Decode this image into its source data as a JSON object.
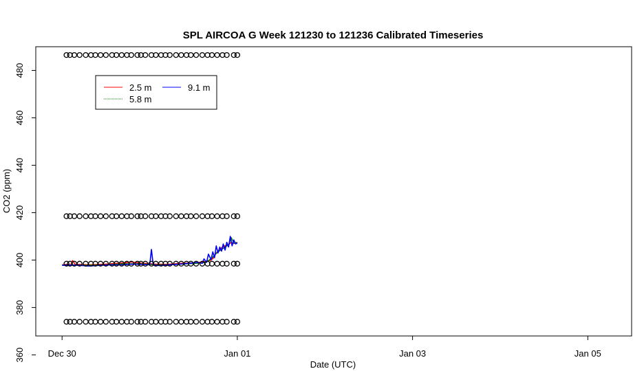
{
  "chart_data": {
    "type": "line",
    "title": "SPL AIRCOA G  Week 121230 to 121236  Calibrated Timeseries",
    "xlabel": "Date (UTC)",
    "ylabel": "CO2 (ppm)",
    "x_unit": "days since Dec 30",
    "xlim": [
      -0.3,
      6.5
    ],
    "ylim": [
      368,
      490
    ],
    "x_ticks": [
      {
        "value": 0,
        "label": "Dec 30"
      },
      {
        "value": 2,
        "label": "Jan 01"
      },
      {
        "value": 4,
        "label": "Jan 03"
      },
      {
        "value": 6,
        "label": "Jan 05"
      }
    ],
    "y_ticks": [
      360,
      380,
      400,
      420,
      440,
      460,
      480
    ],
    "grid": false,
    "legend": {
      "position": "top-left",
      "entries": [
        "2.5 m",
        "9.1 m",
        "5.8 m"
      ]
    },
    "series": [
      {
        "name": "2.5 m",
        "color": "#ff0000",
        "x": [
          0.0,
          0.05,
          0.1,
          0.12,
          0.15,
          0.3,
          0.5,
          0.7,
          0.8,
          0.9,
          1.0,
          1.05,
          1.2,
          1.35,
          1.5,
          1.6,
          1.65,
          1.7,
          1.73,
          1.76,
          1.8,
          1.83,
          1.86,
          1.9,
          1.93,
          1.96,
          2.0
        ],
        "y": [
          398.0,
          398.2,
          398.0,
          399.8,
          398.2,
          398.0,
          398.3,
          398.8,
          399.2,
          398.7,
          398.5,
          398.3,
          398.2,
          398.6,
          398.8,
          399.2,
          399.5,
          400.0,
          401.0,
          403.0,
          404.5,
          405.5,
          406.0,
          406.5,
          407.5,
          407.0,
          407.5
        ]
      },
      {
        "name": "5.8 m",
        "color": "#008000",
        "x": [
          0.0,
          0.1,
          0.3,
          0.5,
          0.7,
          0.9,
          1.0,
          1.05,
          1.2,
          1.4,
          1.6,
          1.65,
          1.7,
          1.75,
          1.8,
          1.85,
          1.9,
          1.93,
          1.96,
          2.0
        ],
        "y": [
          397.9,
          398.0,
          397.8,
          398.0,
          398.4,
          398.4,
          398.2,
          398.0,
          398.0,
          398.4,
          398.8,
          399.3,
          400.5,
          402.5,
          404.0,
          405.2,
          406.5,
          409.5,
          407.2,
          407.3
        ]
      },
      {
        "name": "9.1 m",
        "color": "#0000ff",
        "x": [
          0.0,
          0.1,
          0.2,
          0.3,
          0.4,
          0.5,
          0.6,
          0.7,
          0.8,
          0.9,
          1.0,
          1.02,
          1.04,
          1.1,
          1.2,
          1.3,
          1.4,
          1.5,
          1.55,
          1.6,
          1.62,
          1.65,
          1.67,
          1.7,
          1.72,
          1.74,
          1.76,
          1.78,
          1.8,
          1.82,
          1.84,
          1.86,
          1.88,
          1.9,
          1.92,
          1.94,
          1.96,
          1.98,
          2.0
        ],
        "y": [
          397.8,
          397.9,
          397.8,
          397.5,
          397.7,
          397.9,
          398.0,
          398.0,
          398.3,
          398.2,
          398.0,
          404.5,
          398.0,
          397.7,
          397.9,
          398.2,
          398.5,
          398.8,
          399.0,
          398.6,
          400.5,
          399.0,
          402.5,
          400.2,
          403.5,
          401.0,
          406.0,
          403.0,
          405.5,
          403.8,
          406.8,
          404.2,
          407.5,
          405.5,
          410.0,
          406.0,
          408.5,
          406.8,
          407.2
        ]
      }
    ],
    "marker_rows": [
      374,
      398.5,
      418.5,
      486.5
    ],
    "marker_x": [
      0.05,
      0.09,
      0.14,
      0.2,
      0.27,
      0.33,
      0.38,
      0.44,
      0.5,
      0.57,
      0.62,
      0.68,
      0.74,
      0.79,
      0.86,
      0.9,
      0.95,
      1.02,
      1.07,
      1.13,
      1.18,
      1.23,
      1.3,
      1.36,
      1.42,
      1.47,
      1.53,
      1.6,
      1.66,
      1.71,
      1.77,
      1.83,
      1.88,
      1.96,
      2.0
    ]
  }
}
